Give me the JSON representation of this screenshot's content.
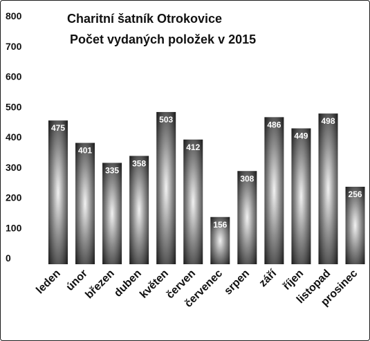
{
  "chart_data": {
    "type": "bar",
    "title": "Charitní šatník Otrokovice",
    "subtitle": "Počet vydaných položek v 2015",
    "categories": [
      "leden",
      "únor",
      "březen",
      "duben",
      "květen",
      "červen",
      "červenec",
      "srpen",
      "září",
      "říjen",
      "listopad",
      "prosinec"
    ],
    "values": [
      475,
      401,
      335,
      358,
      503,
      412,
      156,
      308,
      486,
      449,
      498,
      256
    ],
    "ylim": [
      0,
      800
    ],
    "yticks": [
      "0",
      "100",
      "200",
      "300",
      "400",
      "500",
      "600",
      "700",
      "800"
    ],
    "xlabel": "",
    "ylabel": "",
    "grid": false,
    "legend": "none",
    "bar_style": "dark cylinder with light center highlight",
    "colors": {
      "bar_dark": "#1a1a1a",
      "bar_light": "#f2f2f2",
      "text": "#111111",
      "label_text": "#ffffff"
    }
  }
}
